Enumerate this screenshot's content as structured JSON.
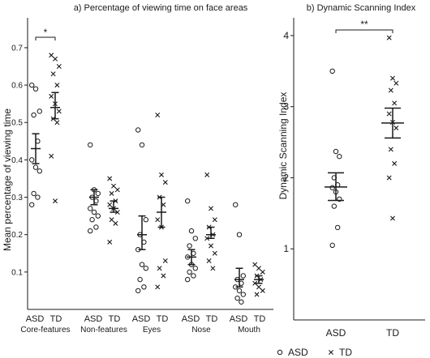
{
  "chart_data": [
    {
      "type": "scatter",
      "panel": "a",
      "title": "a) Percentage of viewing time on face areas",
      "ylabel": "Mean percentage of  viewing time",
      "ylim": [
        0.0,
        0.78
      ],
      "yticks": [
        0.1,
        0.2,
        0.3,
        0.4,
        0.5,
        0.6,
        0.7
      ],
      "ytick_labels": [
        "0.1",
        "0.2",
        "0.3",
        "0.4",
        "0.5",
        "0.6",
        "0.7"
      ],
      "categories": [
        "Core-features",
        "Non-features",
        "Eyes",
        "Nose",
        "Mouth"
      ],
      "group_labels": [
        "ASD",
        "TD"
      ],
      "series": [
        {
          "name": "ASD",
          "marker": "circle",
          "mean": [
            0.43,
            0.3,
            0.2,
            0.14,
            0.08
          ],
          "err_low": [
            0.39,
            0.28,
            0.16,
            0.12,
            0.06
          ],
          "err_high": [
            0.47,
            0.32,
            0.25,
            0.16,
            0.11
          ],
          "points": [
            [
              0.6,
              0.59,
              0.53,
              0.52,
              0.45,
              0.4,
              0.38,
              0.37,
              0.31,
              0.3,
              0.28
            ],
            [
              0.44,
              0.32,
              0.31,
              0.3,
              0.29,
              0.27,
              0.26,
              0.25,
              0.24,
              0.22,
              0.21
            ],
            [
              0.48,
              0.44,
              0.24,
              0.2,
              0.18,
              0.16,
              0.12,
              0.11,
              0.08,
              0.06,
              0.05
            ],
            [
              0.29,
              0.21,
              0.19,
              0.17,
              0.15,
              0.14,
              0.12,
              0.11,
              0.1,
              0.09,
              0.08
            ],
            [
              0.28,
              0.2,
              0.09,
              0.08,
              0.07,
              0.06,
              0.05,
              0.04,
              0.03,
              0.02
            ]
          ]
        },
        {
          "name": "TD",
          "marker": "x",
          "mean": [
            0.54,
            0.27,
            0.26,
            0.2,
            0.08
          ],
          "err_low": [
            0.51,
            0.26,
            0.22,
            0.19,
            0.07
          ],
          "err_high": [
            0.58,
            0.29,
            0.3,
            0.22,
            0.09
          ],
          "points": [
            [
              0.68,
              0.67,
              0.65,
              0.63,
              0.6,
              0.57,
              0.55,
              0.53,
              0.51,
              0.5,
              0.41,
              0.29
            ],
            [
              0.35,
              0.33,
              0.32,
              0.31,
              0.29,
              0.28,
              0.27,
              0.26,
              0.24,
              0.23,
              0.18
            ],
            [
              0.52,
              0.36,
              0.34,
              0.3,
              0.28,
              0.24,
              0.22,
              0.13,
              0.11,
              0.09,
              0.06
            ],
            [
              0.36,
              0.27,
              0.24,
              0.22,
              0.2,
              0.19,
              0.17,
              0.15,
              0.13,
              0.11
            ],
            [
              0.12,
              0.11,
              0.1,
              0.09,
              0.08,
              0.07,
              0.06,
              0.05,
              0.04
            ]
          ]
        }
      ],
      "annotations": [
        {
          "text": "*",
          "between": [
            "ASD",
            "TD"
          ],
          "category": "Core-features"
        }
      ],
      "grid": false
    },
    {
      "type": "scatter",
      "panel": "b",
      "title": "b) Dynamic Scanning Index",
      "ylabel": "Dynamic Scanning Index",
      "ylim": [
        0.0,
        4.25
      ],
      "yticks": [
        1,
        2,
        3,
        4
      ],
      "ytick_labels": [
        "1",
        "2",
        "3",
        "4"
      ],
      "categories": [
        "ASD",
        "TD"
      ],
      "series": [
        {
          "name": "ASD",
          "marker": "circle",
          "mean": 1.87,
          "err_low": 1.68,
          "err_high": 2.07,
          "points": [
            3.5,
            2.37,
            2.3,
            2.0,
            1.9,
            1.86,
            1.8,
            1.7,
            1.6,
            1.3,
            1.05
          ]
        },
        {
          "name": "TD",
          "marker": "x",
          "mean": 2.77,
          "err_low": 2.56,
          "err_high": 2.98,
          "points": [
            3.97,
            3.4,
            3.33,
            3.23,
            3.05,
            2.9,
            2.78,
            2.7,
            2.4,
            2.2,
            2.0,
            1.43
          ]
        }
      ],
      "annotations": [
        {
          "text": "**",
          "between": [
            "ASD",
            "TD"
          ]
        }
      ],
      "grid": false
    }
  ],
  "legend": {
    "placement": "bottom-right",
    "items": [
      {
        "label": "ASD",
        "marker": "circle"
      },
      {
        "label": "TD",
        "marker": "x"
      }
    ]
  }
}
